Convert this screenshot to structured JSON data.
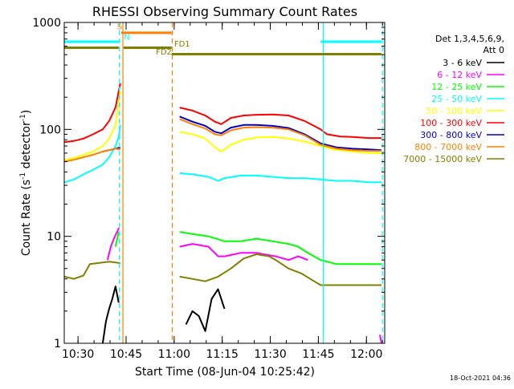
{
  "chart_data": {
    "type": "line",
    "title": "RHESSI Observing Summary Count Rates",
    "xlabel": "Start Time (08-Jun-04 10:25:42)",
    "ylabel_main": "Count Rate (s",
    "ylabel_sup1": "-1",
    "ylabel_mid": " detector",
    "ylabel_sup2": "-1",
    "ylabel_end": ")",
    "yscale": "log",
    "ylim": [
      1,
      1000
    ],
    "xlim_minutes": [
      0,
      100
    ],
    "x_ticks": [
      {
        "m": 4.3,
        "label": "10:30"
      },
      {
        "m": 19.3,
        "label": "10:45"
      },
      {
        "m": 34.3,
        "label": "11:00"
      },
      {
        "m": 49.3,
        "label": "11:15"
      },
      {
        "m": 64.3,
        "label": "11:30"
      },
      {
        "m": 79.3,
        "label": "11:45"
      },
      {
        "m": 94.3,
        "label": "12:00"
      }
    ],
    "y_ticks": [
      {
        "v": 1,
        "label": "1"
      },
      {
        "v": 10,
        "label": "10"
      },
      {
        "v": 100,
        "label": "100"
      },
      {
        "v": 1000,
        "label": "1000"
      }
    ],
    "legend_header": [
      "Det 1,3,4,5,6,9,",
      "Att 0"
    ],
    "timestamp": "18-Oct-2021 04:36",
    "series": [
      {
        "name": "3 - 6 keV",
        "color": "#000000",
        "segments": [
          [
            [
              12,
              1
            ],
            [
              13,
              1.6
            ],
            [
              14,
              2.1
            ],
            [
              15,
              2.6
            ],
            [
              16,
              3.4
            ],
            [
              17,
              2.4
            ]
          ],
          [
            [
              38,
              1.5
            ],
            [
              40,
              2
            ],
            [
              42,
              1.8
            ],
            [
              44,
              1.3
            ],
            [
              46,
              2.6
            ],
            [
              48,
              3.2
            ],
            [
              50,
              2.1
            ]
          ]
        ]
      },
      {
        "name": "6 - 12 keV",
        "color": "#ff00ff",
        "segments": [
          [
            [
              13.5,
              6
            ],
            [
              14.5,
              8
            ],
            [
              15.5,
              9.5
            ],
            [
              16.5,
              11
            ],
            [
              17.1,
              12
            ]
          ],
          [
            [
              36,
              8
            ],
            [
              40,
              8.5
            ],
            [
              45,
              8
            ],
            [
              48,
              6.5
            ],
            [
              50,
              6.5
            ],
            [
              55,
              7
            ],
            [
              60,
              7
            ],
            [
              66,
              6.5
            ],
            [
              70,
              6
            ],
            [
              73,
              6.5
            ],
            [
              76,
              6
            ]
          ],
          [
            [
              98.5,
              1.2
            ],
            [
              99,
              1.0
            ]
          ]
        ]
      },
      {
        "name": "12 - 25 keV",
        "color": "#00ff00",
        "segments": [
          [
            [
              16,
              8
            ],
            [
              17,
              11
            ]
          ],
          [
            [
              36,
              11
            ],
            [
              40,
              10.5
            ],
            [
              45,
              10
            ],
            [
              50,
              9
            ],
            [
              55,
              9
            ],
            [
              60,
              9.5
            ],
            [
              65,
              9
            ],
            [
              70,
              8.5
            ],
            [
              73,
              8
            ],
            [
              76,
              7
            ],
            [
              80,
              6
            ],
            [
              85,
              5.5
            ],
            [
              90,
              5.5
            ],
            [
              95,
              5.5
            ],
            [
              99,
              5.5
            ]
          ]
        ]
      },
      {
        "name": "25 - 50 keV",
        "color": "#00ffff",
        "segments": [
          [
            [
              0,
              32
            ],
            [
              3,
              34
            ],
            [
              6,
              38
            ],
            [
              9,
              42
            ],
            [
              12,
              47
            ],
            [
              14,
              55
            ],
            [
              16,
              70
            ],
            [
              17,
              85
            ],
            [
              17.5,
              110
            ]
          ],
          [
            [
              36,
              39
            ],
            [
              40,
              38
            ],
            [
              45,
              36
            ],
            [
              48,
              33
            ],
            [
              50,
              35
            ],
            [
              55,
              37
            ],
            [
              60,
              37
            ],
            [
              65,
              36
            ],
            [
              70,
              35
            ],
            [
              75,
              35
            ],
            [
              80,
              34
            ],
            [
              85,
              33
            ],
            [
              90,
              33
            ],
            [
              95,
              32
            ],
            [
              99,
              32
            ]
          ]
        ]
      },
      {
        "name": "50 - 100 keV",
        "color": "#ffff00",
        "segments": [
          [
            [
              0,
              52
            ],
            [
              3,
              54
            ],
            [
              6,
              58
            ],
            [
              9,
              62
            ],
            [
              12,
              70
            ],
            [
              14,
              82
            ],
            [
              16,
              110
            ],
            [
              17.5,
              230
            ]
          ],
          [
            [
              36,
              95
            ],
            [
              40,
              90
            ],
            [
              44,
              82
            ],
            [
              47,
              68
            ],
            [
              49,
              62
            ],
            [
              52,
              72
            ],
            [
              56,
              80
            ],
            [
              60,
              84
            ],
            [
              65,
              85
            ],
            [
              70,
              82
            ],
            [
              75,
              77
            ],
            [
              80,
              70
            ],
            [
              84,
              65
            ],
            [
              90,
              62
            ],
            [
              95,
              60
            ],
            [
              99,
              60
            ]
          ]
        ]
      },
      {
        "name": "100 - 300 keV",
        "color": "#ff0000",
        "segments": [
          [
            [
              0,
              76
            ],
            [
              3,
              78
            ],
            [
              6,
              82
            ],
            [
              9,
              90
            ],
            [
              12,
              100
            ],
            [
              14,
              120
            ],
            [
              16,
              160
            ],
            [
              17.5,
              270
            ]
          ],
          [
            [
              36,
              160
            ],
            [
              40,
              150
            ],
            [
              44,
              135
            ],
            [
              47,
              118
            ],
            [
              49,
              112
            ],
            [
              52,
              128
            ],
            [
              56,
              135
            ],
            [
              60,
              137
            ],
            [
              65,
              138
            ],
            [
              70,
              135
            ],
            [
              75,
              120
            ],
            [
              80,
              100
            ],
            [
              82,
              90
            ],
            [
              86,
              86
            ],
            [
              90,
              85
            ],
            [
              95,
              83
            ],
            [
              99,
              83
            ]
          ]
        ]
      },
      {
        "name": "300 - 800 keV",
        "color": "#0000cc",
        "segments": [
          [
            [
              12,
              62
            ],
            [
              14,
              64
            ],
            [
              16,
              66
            ],
            [
              17.5,
              68
            ]
          ],
          [
            [
              36,
              132
            ],
            [
              40,
              118
            ],
            [
              44,
              108
            ],
            [
              47,
              95
            ],
            [
              49,
              92
            ],
            [
              52,
              104
            ],
            [
              56,
              110
            ],
            [
              60,
              110
            ],
            [
              65,
              108
            ],
            [
              70,
              103
            ],
            [
              75,
              90
            ],
            [
              80,
              74
            ],
            [
              85,
              68
            ],
            [
              90,
              66
            ],
            [
              95,
              65
            ],
            [
              99,
              64
            ]
          ]
        ]
      },
      {
        "name": "800 - 7000 keV",
        "color": "#ff8000",
        "segments": [
          [
            [
              0,
              50
            ],
            [
              3,
              52
            ],
            [
              6,
              55
            ],
            [
              9,
              58
            ],
            [
              12,
              62
            ],
            [
              14,
              64
            ],
            [
              16,
              66
            ],
            [
              17.5,
              65
            ]
          ],
          [
            [
              36,
              125
            ],
            [
              40,
              112
            ],
            [
              44,
              102
            ],
            [
              47,
              90
            ],
            [
              49,
              88
            ],
            [
              52,
              98
            ],
            [
              56,
              104
            ],
            [
              60,
              105
            ],
            [
              65,
              104
            ],
            [
              70,
              100
            ],
            [
              75,
              88
            ],
            [
              80,
              72
            ],
            [
              85,
              66
            ],
            [
              90,
              64
            ],
            [
              95,
              63
            ],
            [
              99,
              63
            ]
          ]
        ]
      },
      {
        "name": "7000 - 15000 keV",
        "color": "#808000",
        "segments": [
          [
            [
              0,
              4.2
            ],
            [
              3,
              4.0
            ],
            [
              6,
              4.3
            ],
            [
              8,
              5.5
            ],
            [
              10,
              5.6
            ],
            [
              12,
              5.7
            ],
            [
              14,
              5.8
            ],
            [
              16,
              5.7
            ],
            [
              17.5,
              5.6
            ]
          ],
          [
            [
              36,
              4.2
            ],
            [
              40,
              4.0
            ],
            [
              44,
              3.8
            ],
            [
              48,
              4.2
            ],
            [
              52,
              5.0
            ],
            [
              56,
              6.2
            ],
            [
              60,
              6.8
            ],
            [
              64,
              6.5
            ],
            [
              66,
              6.0
            ],
            [
              70,
              5.0
            ],
            [
              74,
              4.5
            ],
            [
              78,
              3.8
            ],
            [
              80,
              3.5
            ],
            [
              85,
              3.5
            ],
            [
              90,
              3.5
            ],
            [
              95,
              3.5
            ],
            [
              99,
              3.5
            ]
          ]
        ]
      }
    ],
    "flag_bars": [
      {
        "label": "S",
        "color": "#00ffff",
        "y": 660,
        "segments": [
          [
            0,
            17
          ],
          [
            80,
            99
          ]
        ]
      },
      {
        "label": "",
        "color": "#ff8000",
        "y": 800,
        "segments": [
          [
            17.8,
            33.5
          ]
        ]
      },
      {
        "label": "FD1",
        "color": "#808000",
        "y": 580,
        "segments": [
          [
            0,
            17
          ],
          [
            18.5,
            33.5
          ]
        ]
      },
      {
        "label": "FD2",
        "color": "#808000",
        "y": 505,
        "segments": [
          [
            33.5,
            99
          ]
        ]
      }
    ],
    "flag_labels": [
      {
        "text": "S",
        "color": "#ff8000",
        "m": 16.5,
        "y": 860
      },
      {
        "text": "N",
        "color": "#00ffff",
        "m": 18.6,
        "y": 690
      },
      {
        "text": "FD1",
        "color": "#808000",
        "m": 34.3,
        "y": 595
      },
      {
        "text": "FD2",
        "color": "#808000",
        "m": 28.6,
        "y": 500
      }
    ],
    "vertical_markers": [
      {
        "m": 17.2,
        "color": "#00ffff",
        "dash": true
      },
      {
        "m": 18.3,
        "color": "#ff8000",
        "dash": false
      },
      {
        "m": 33.7,
        "color": "#ff8000",
        "dash": true
      },
      {
        "m": 80.8,
        "color": "#00ffff",
        "dash": false
      },
      {
        "m": 99.3,
        "color": "#00ffff",
        "dash": true
      }
    ]
  }
}
